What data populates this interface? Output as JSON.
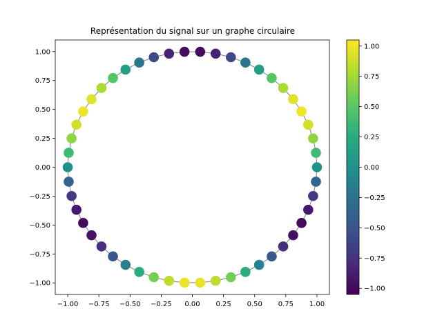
{
  "chart_data": {
    "type": "scatter",
    "title": "Représentation du signal sur un graphe circulaire",
    "xlabel": "",
    "ylabel": "",
    "xlim": [
      -1.1,
      1.1
    ],
    "ylim": [
      -1.1,
      1.1
    ],
    "x_ticks": [
      -1.0,
      -0.75,
      -0.5,
      -0.25,
      0.0,
      0.25,
      0.5,
      0.75,
      1.0
    ],
    "x_tick_labels": [
      "−1.00",
      "−0.75",
      "−0.50",
      "−0.25",
      "0.00",
      "0.25",
      "0.50",
      "0.75",
      "1.00"
    ],
    "y_ticks": [
      1.0,
      0.75,
      0.5,
      0.25,
      0.0,
      -0.25,
      -0.5,
      -0.75,
      -1.0
    ],
    "y_tick_labels": [
      "1.00",
      "0.75",
      "0.50",
      "0.25",
      "0.00",
      "−0.25",
      "−0.50",
      "−0.75",
      "−1.00"
    ],
    "grid": false,
    "edges": "ring",
    "edge_color": "#808080",
    "colormap": "viridis",
    "node_count": 50,
    "nodes": [
      {
        "x": 1.0,
        "y": 0.0,
        "value": 0.0
      },
      {
        "x": 0.992,
        "y": 0.125,
        "value": 0.374
      },
      {
        "x": 0.969,
        "y": 0.249,
        "value": 0.685
      },
      {
        "x": 0.93,
        "y": 0.368,
        "value": 0.905
      },
      {
        "x": 0.876,
        "y": 0.482,
        "value": 0.998
      },
      {
        "x": 0.809,
        "y": 0.588,
        "value": 0.951
      },
      {
        "x": 0.729,
        "y": 0.685,
        "value": 0.771
      },
      {
        "x": 0.637,
        "y": 0.771,
        "value": 0.482
      },
      {
        "x": 0.536,
        "y": 0.844,
        "value": 0.125
      },
      {
        "x": 0.426,
        "y": 0.905,
        "value": -0.249
      },
      {
        "x": 0.309,
        "y": 0.951,
        "value": -0.588
      },
      {
        "x": 0.187,
        "y": 0.982,
        "value": -0.844
      },
      {
        "x": 0.063,
        "y": 0.998,
        "value": -0.982
      },
      {
        "x": -0.063,
        "y": 0.998,
        "value": -0.982
      },
      {
        "x": -0.187,
        "y": 0.982,
        "value": -0.844
      },
      {
        "x": -0.309,
        "y": 0.951,
        "value": -0.588
      },
      {
        "x": -0.426,
        "y": 0.905,
        "value": -0.249
      },
      {
        "x": -0.536,
        "y": 0.844,
        "value": 0.125
      },
      {
        "x": -0.637,
        "y": 0.771,
        "value": 0.482
      },
      {
        "x": -0.729,
        "y": 0.685,
        "value": 0.771
      },
      {
        "x": -0.809,
        "y": 0.588,
        "value": 0.951
      },
      {
        "x": -0.876,
        "y": 0.482,
        "value": 0.998
      },
      {
        "x": -0.93,
        "y": 0.368,
        "value": 0.905
      },
      {
        "x": -0.969,
        "y": 0.249,
        "value": 0.685
      },
      {
        "x": -0.992,
        "y": 0.125,
        "value": 0.374
      },
      {
        "x": -1.0,
        "y": 0.0,
        "value": 0.0
      },
      {
        "x": -0.992,
        "y": -0.125,
        "value": -0.374
      },
      {
        "x": -0.969,
        "y": -0.249,
        "value": -0.685
      },
      {
        "x": -0.93,
        "y": -0.368,
        "value": -0.905
      },
      {
        "x": -0.876,
        "y": -0.482,
        "value": -0.998
      },
      {
        "x": -0.809,
        "y": -0.588,
        "value": -0.951
      },
      {
        "x": -0.729,
        "y": -0.685,
        "value": -0.771
      },
      {
        "x": -0.637,
        "y": -0.771,
        "value": -0.482
      },
      {
        "x": -0.536,
        "y": -0.844,
        "value": -0.125
      },
      {
        "x": -0.426,
        "y": -0.905,
        "value": 0.249
      },
      {
        "x": -0.309,
        "y": -0.951,
        "value": 0.588
      },
      {
        "x": -0.187,
        "y": -0.982,
        "value": 0.844
      },
      {
        "x": -0.063,
        "y": -0.998,
        "value": 0.982
      },
      {
        "x": 0.063,
        "y": -0.998,
        "value": 0.982
      },
      {
        "x": 0.187,
        "y": -0.982,
        "value": 0.844
      },
      {
        "x": 0.309,
        "y": -0.951,
        "value": 0.588
      },
      {
        "x": 0.426,
        "y": -0.905,
        "value": 0.249
      },
      {
        "x": 0.536,
        "y": -0.844,
        "value": -0.125
      },
      {
        "x": 0.637,
        "y": -0.771,
        "value": -0.482
      },
      {
        "x": 0.729,
        "y": -0.685,
        "value": -0.771
      },
      {
        "x": 0.809,
        "y": -0.588,
        "value": -0.951
      },
      {
        "x": 0.876,
        "y": -0.482,
        "value": -0.998
      },
      {
        "x": 0.93,
        "y": -0.368,
        "value": -0.905
      },
      {
        "x": 0.969,
        "y": -0.249,
        "value": -0.685
      },
      {
        "x": 0.992,
        "y": -0.125,
        "value": -0.374
      }
    ],
    "colorbar": {
      "vmin": -1.05,
      "vmax": 1.05,
      "ticks": [
        1.0,
        0.75,
        0.5,
        0.25,
        0.0,
        -0.25,
        -0.5,
        -0.75,
        -1.0
      ],
      "tick_labels": [
        "1.00",
        "0.75",
        "0.50",
        "0.25",
        "0.00",
        "−0.25",
        "−0.50",
        "−0.75",
        "−1.00"
      ]
    }
  }
}
